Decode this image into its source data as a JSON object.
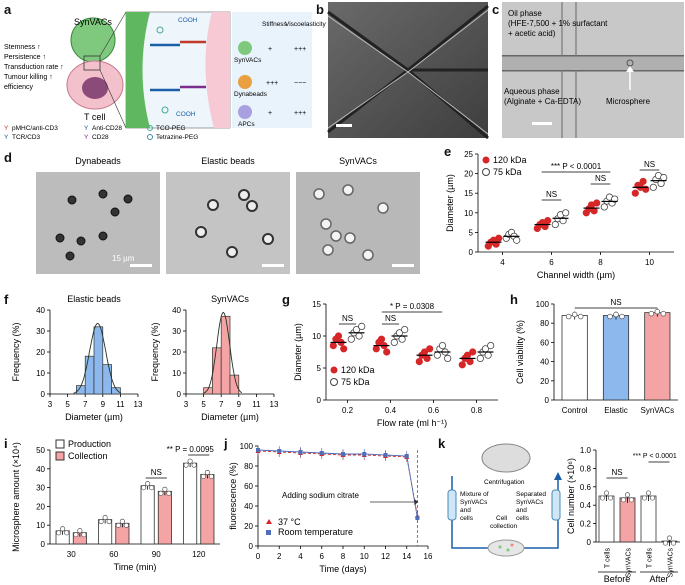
{
  "panel_labels": [
    "a",
    "b",
    "c",
    "d",
    "e",
    "f",
    "g",
    "h",
    "i",
    "j",
    "k"
  ],
  "colors": {
    "red": "#d62728",
    "blue_fill": "#8db8ee",
    "pink_fill": "#f4a4a4",
    "fit_green": "#223322",
    "gray": "#888888"
  },
  "a": {
    "synvacs": "SynVACs",
    "tcell": "T cell",
    "props": [
      "Stemness ↑",
      "Persistence ↑",
      "Transduction rate ↑",
      "Tumour killing ↑",
      "efficiency"
    ],
    "cooh": "COOH",
    "table_headers": [
      "Stiffness",
      "Viscoelasticity"
    ],
    "rows": [
      {
        "name": "SynVACs",
        "stiffness": "+",
        "visco": "+++"
      },
      {
        "name": "Dynabeads",
        "stiffness": "+++",
        "visco": "−−−"
      },
      {
        "name": "APCs",
        "stiffness": "+",
        "visco": "+++"
      }
    ],
    "legend": [
      "pMHC/anti-CD3",
      "Anti-CD28",
      "TCO-PEG",
      "TCR/CD3",
      "CD28",
      "Tetrazine-PEG"
    ]
  },
  "c": {
    "oil": "Oil phase",
    "oil_detail1": "(HFE-7,500 + 1% surfactant",
    "oil_detail2": "+ acetic acid)",
    "aqueous": "Aqueous phase",
    "aqueous_detail": "(Alginate + Ca-EDTA)",
    "microsphere": "Microsphere"
  },
  "d": {
    "titles": [
      "Dynabeads",
      "Elastic beads",
      "SynVACs"
    ],
    "scale": "15 µm"
  },
  "e": {
    "chart_data": {
      "type": "scatter",
      "xlabel": "Channel width (µm)",
      "ylabel": "Diameter (µm)",
      "categories": [
        "4",
        "6",
        "8",
        "10"
      ],
      "ylim": [
        0,
        25
      ],
      "yticks": [
        "0",
        "5",
        "10",
        "15",
        "20",
        "25"
      ],
      "series": [
        {
          "name": "120 kDa",
          "values": [
            [
              1.5,
              2.5,
              3,
              2,
              3.5
            ],
            [
              6,
              7,
              7.5,
              6.5,
              8
            ],
            [
              10,
              11,
              12,
              10.5,
              12.5
            ],
            [
              15,
              17,
              16.5,
              18,
              16
            ]
          ]
        },
        {
          "name": "75 kDa",
          "values": [
            [
              3.5,
              4.5,
              5,
              4,
              3
            ],
            [
              7,
              8.5,
              9.5,
              8,
              10
            ],
            [
              11.5,
              13,
              14,
              12.5,
              13.5
            ],
            [
              16.5,
              18.5,
              19.5,
              17.5,
              19
            ]
          ]
        }
      ],
      "annotations": [
        "NS",
        "NS",
        "NS",
        "*** P < 0.0001"
      ]
    }
  },
  "f": {
    "chart_data": [
      {
        "type": "bar",
        "title": "Elastic beads",
        "xlabel": "Diameter (µm)",
        "ylabel": "Frequency (%)",
        "categories": [
          "6.5",
          "7.5",
          "8.5",
          "9.5",
          "10.5"
        ],
        "values": [
          4,
          18,
          32,
          14,
          3
        ],
        "ylim": [
          0,
          40
        ],
        "xticks": [
          "3",
          "5",
          "7",
          "9",
          "11",
          "13"
        ],
        "yticks": [
          "0",
          "10",
          "20",
          "30",
          "40"
        ]
      },
      {
        "type": "bar",
        "title": "SynVACs",
        "xlabel": "Diameter (µm)",
        "ylabel": "Frequency (%)",
        "categories": [
          "5.5",
          "6.5",
          "7.5",
          "8.5"
        ],
        "values": [
          3,
          22,
          37,
          9
        ],
        "ylim": [
          0,
          40
        ],
        "xticks": [
          "3",
          "5",
          "7",
          "9",
          "11",
          "13"
        ],
        "yticks": [
          "0",
          "10",
          "20",
          "30",
          "40"
        ]
      }
    ]
  },
  "g": {
    "chart_data": {
      "type": "scatter",
      "xlabel": "Flow rate (ml h⁻¹)",
      "ylabel": "Diameter (µm)",
      "categories": [
        "0.2",
        "0.4",
        "0.6",
        "0.8"
      ],
      "ylim": [
        0,
        15
      ],
      "yticks": [
        "0",
        "5",
        "10",
        "15"
      ],
      "series": [
        {
          "name": "120 kDa",
          "values": [
            [
              8.5,
              9.5,
              10,
              9,
              8
            ],
            [
              8,
              9,
              9.5,
              8.5,
              7.5
            ],
            [
              6,
              7,
              7.5,
              6.5,
              8
            ],
            [
              5.5,
              6.5,
              7,
              6,
              7.5
            ]
          ]
        },
        {
          "name": "75 kDa",
          "values": [
            [
              9.5,
              10.5,
              11,
              10,
              11.5
            ],
            [
              9,
              10,
              10.5,
              9.5,
              11
            ],
            [
              7,
              8,
              8.5,
              7.5,
              6.5
            ],
            [
              6.5,
              7.5,
              8,
              7,
              8.5
            ]
          ]
        }
      ],
      "annotations": [
        "NS",
        "NS",
        "* P = 0.0308"
      ]
    }
  },
  "h": {
    "chart_data": {
      "type": "bar",
      "ylabel": "Cell viability (%)",
      "categories": [
        "Control",
        "Elastic",
        "SynVACs"
      ],
      "values": [
        88,
        88,
        91
      ],
      "ylim": [
        0,
        100
      ],
      "yticks": [
        "0",
        "20",
        "40",
        "60",
        "80",
        "100"
      ],
      "annotations": [
        "NS"
      ]
    }
  },
  "i": {
    "chart_data": {
      "type": "bar",
      "xlabel": "Time (min)",
      "ylabel": "Microsphere amount (×10⁴)",
      "categories": [
        "30",
        "60",
        "90",
        "120"
      ],
      "ylim": [
        0,
        50
      ],
      "yticks": [
        "0",
        "10",
        "20",
        "30",
        "40",
        "50"
      ],
      "series": [
        {
          "name": "Production",
          "values": [
            7,
            13,
            31,
            43
          ]
        },
        {
          "name": "Collection",
          "values": [
            6,
            11,
            28,
            37
          ]
        }
      ],
      "annotations": [
        "NS",
        "** P = 0.0095"
      ]
    }
  },
  "j": {
    "chart_data": {
      "type": "line",
      "xlabel": "Time (days)",
      "ylabel": "fluorescence (%)",
      "x": [
        0,
        2,
        4,
        6,
        8,
        10,
        12,
        14,
        15
      ],
      "ylim": [
        0,
        100
      ],
      "xlim": [
        0,
        16
      ],
      "xticks": [
        "0",
        "2",
        "4",
        "6",
        "8",
        "10",
        "12",
        "14",
        "16"
      ],
      "yticks": [
        "0",
        "20",
        "40",
        "60",
        "80",
        "100"
      ],
      "series": [
        {
          "name": "37 °C",
          "values": [
            95,
            94,
            93,
            92,
            91,
            91,
            90,
            89,
            30
          ]
        },
        {
          "name": "Room temperature",
          "values": [
            96,
            95,
            94,
            93,
            92,
            92,
            91,
            90,
            28
          ]
        }
      ],
      "annotation": "Adding sodium citrate"
    }
  },
  "k": {
    "labels": {
      "centrifugation": "Centrifugation",
      "mixture": [
        "Mixture of",
        "SynVACs",
        "and",
        "cells"
      ],
      "separated": [
        "Separated",
        "SynVACs",
        "and",
        "cells"
      ],
      "collection": [
        "Cell",
        "collection"
      ]
    },
    "chart_data": {
      "type": "bar",
      "ylabel": "Cell number (×10⁶)",
      "categories": [
        "T cells",
        "SynVACs",
        "T cells",
        "SynVACs"
      ],
      "groups": [
        "Before",
        "After"
      ],
      "values": [
        0.5,
        0.48,
        0.5,
        0.01
      ],
      "ylim": [
        0,
        1.0
      ],
      "yticks": [
        "0",
        "0.2",
        "0.4",
        "0.6",
        "0.8",
        "1.0"
      ],
      "annotations": [
        "NS",
        "*** P < 0.0001"
      ]
    }
  }
}
